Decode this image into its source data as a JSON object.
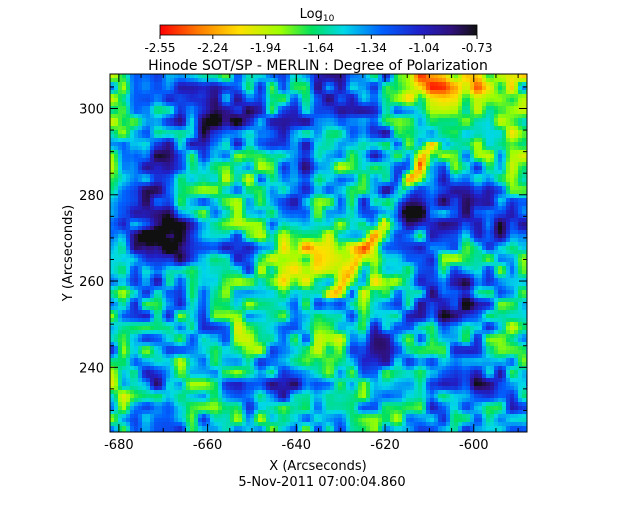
{
  "chart_data": {
    "type": "heatmap",
    "title": "Hinode SOT/SP - MERLIN : Degree of Polarization",
    "subtitle": "5-Nov-2011 07:00:04.860",
    "xlabel": "X (Arcseconds)",
    "ylabel": "Y (Arcseconds)",
    "xlim": [
      -682,
      -588
    ],
    "ylim": [
      225,
      308
    ],
    "x_ticks": [
      -680,
      -660,
      -640,
      -620,
      -600
    ],
    "y_ticks": [
      240,
      260,
      280,
      300
    ],
    "colorbar": {
      "title_base": "Log",
      "title_sub": "10",
      "ticks": [
        "-2.55",
        "-2.24",
        "-1.94",
        "-1.64",
        "-1.34",
        "-1.04",
        "-0.73"
      ],
      "range": [
        -2.55,
        -0.73
      ],
      "colormap": "rainbow"
    }
  }
}
